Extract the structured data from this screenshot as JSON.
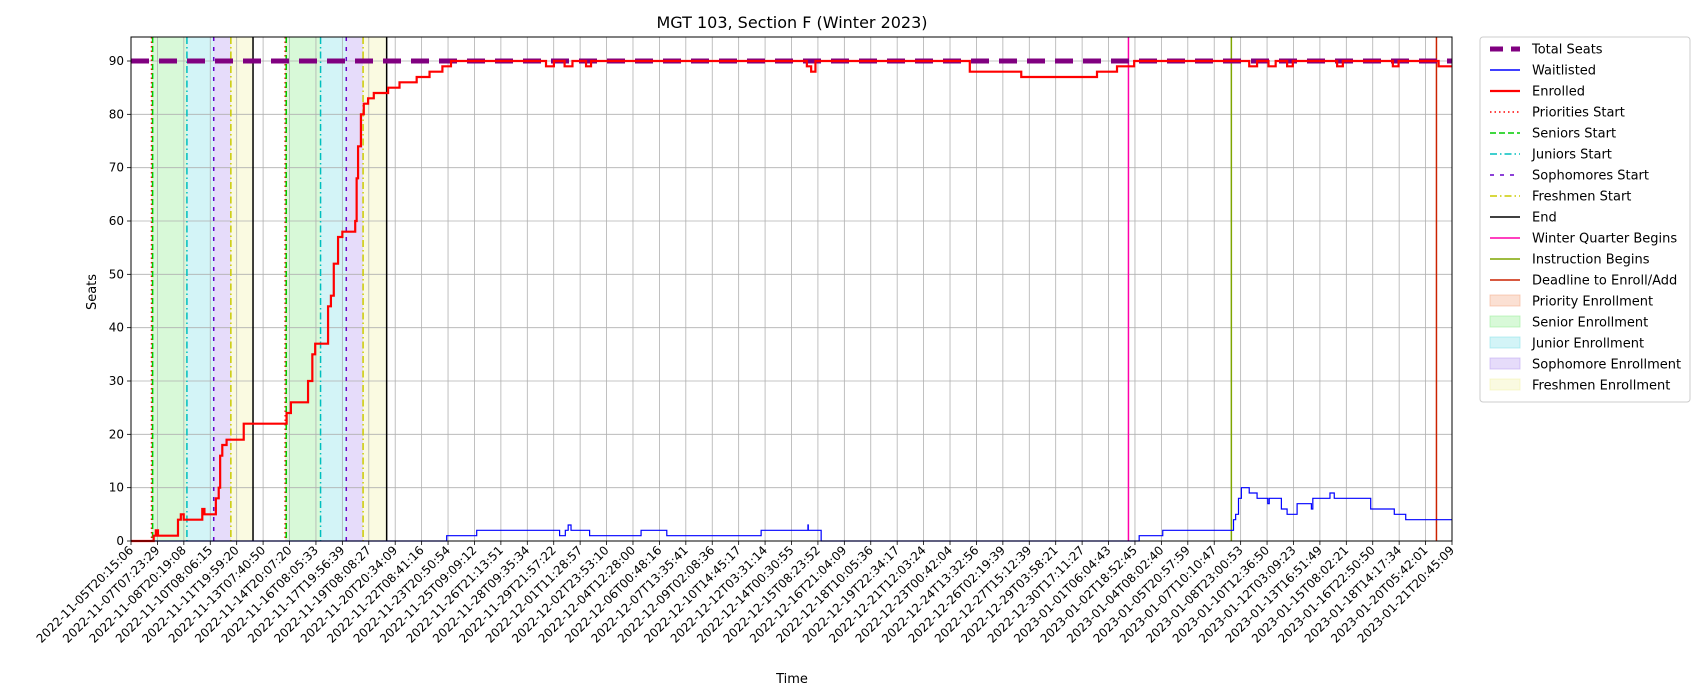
{
  "chart_data": {
    "type": "line",
    "title": "MGT 103, Section F (Winter 2023)",
    "xlabel": "Time",
    "ylabel": "Seats",
    "ylim": [
      0,
      94.5
    ],
    "yticks": [
      0,
      10,
      20,
      30,
      40,
      50,
      60,
      70,
      80,
      90
    ],
    "grid": true,
    "legend_position": "outside-right",
    "x_range": [
      "2022-11-05T20:15:06",
      "2023-01-21T20:45:09"
    ],
    "x_tick_labels": [
      "2022-11-05T20:15:06",
      "2022-11-07T07:23:29",
      "2022-11-08T20:19:08",
      "2022-11-10T08:06:15",
      "2022-11-11T19:59:20",
      "2022-11-13T07:40:50",
      "2022-11-14T20:07:20",
      "2022-11-16T08:05:33",
      "2022-11-17T19:56:39",
      "2022-11-19T08:08:27",
      "2022-11-20T20:34:09",
      "2022-11-22T08:41:16",
      "2022-11-23T20:50:54",
      "2022-11-25T09:09:12",
      "2022-11-26T21:13:51",
      "2022-11-28T09:35:34",
      "2022-11-29T21:57:22",
      "2022-12-01T11:28:57",
      "2022-12-02T23:53:10",
      "2022-12-04T12:28:00",
      "2022-12-06T00:48:16",
      "2022-12-07T13:35:41",
      "2022-12-09T02:08:36",
      "2022-12-10T14:45:17",
      "2022-12-12T03:31:14",
      "2022-12-14T00:30:55",
      "2022-12-15T08:23:52",
      "2022-12-16T21:04:09",
      "2022-12-18T10:05:36",
      "2022-12-19T22:34:17",
      "2022-12-21T12:03:24",
      "2022-12-23T00:42:04",
      "2022-12-24T13:32:56",
      "2022-12-26T02:19:39",
      "2022-12-27T15:12:39",
      "2022-12-29T03:58:21",
      "2022-12-30T17:11:27",
      "2023-01-01T06:04:43",
      "2023-01-02T18:52:45",
      "2023-01-04T08:02:40",
      "2023-01-05T20:57:59",
      "2023-01-07T10:10:47",
      "2023-01-08T23:00:53",
      "2023-01-10T12:36:50",
      "2023-01-12T03:09:23",
      "2023-01-13T16:51:49",
      "2023-01-15T08:02:21",
      "2023-01-16T22:50:50",
      "2023-01-18T14:17:34",
      "2023-01-20T05:42:01",
      "2023-01-21T20:45:09"
    ],
    "series": [
      {
        "name": "Total Seats",
        "color": "#800080",
        "style": "dashed-thick",
        "points": [
          [
            "2022-11-05T20:15:06",
            90
          ],
          [
            "2023-01-21T20:45:09",
            90
          ]
        ]
      },
      {
        "name": "Waitlisted",
        "color": "#0000ff",
        "style": "step",
        "points": [
          [
            "2022-11-05T20:15:06",
            0
          ],
          [
            "2022-11-23T20:50:54",
            0
          ],
          [
            "2022-11-24T06:00:00",
            1
          ],
          [
            "2022-11-25T09:09:12",
            1
          ],
          [
            "2022-11-26T00:00:00",
            2
          ],
          [
            "2022-11-30T12:00:00",
            2
          ],
          [
            "2022-11-30T20:00:00",
            1
          ],
          [
            "2022-12-01T04:00:00",
            2
          ],
          [
            "2022-12-01T08:00:00",
            3
          ],
          [
            "2022-12-01T12:00:00",
            2
          ],
          [
            "2022-12-02T12:00:00",
            2
          ],
          [
            "2022-12-02T14:00:00",
            1
          ],
          [
            "2022-12-05T12:00:00",
            1
          ],
          [
            "2022-12-05T14:00:00",
            2
          ],
          [
            "2022-12-07T00:00:00",
            2
          ],
          [
            "2022-12-07T02:00:00",
            1
          ],
          [
            "2022-12-12T12:00:00",
            1
          ],
          [
            "2022-12-12T14:00:00",
            2
          ],
          [
            "2022-12-15T07:00:00",
            2
          ],
          [
            "2022-12-15T07:30:00",
            3
          ],
          [
            "2022-12-15T08:00:00",
            2
          ],
          [
            "2022-12-16T01:00:00",
            2
          ],
          [
            "2022-12-16T02:00:00",
            0
          ],
          [
            "2023-01-03T13:00:00",
            0
          ],
          [
            "2023-01-03T15:00:00",
            1
          ],
          [
            "2023-01-04T18:00:00",
            1
          ],
          [
            "2023-01-05T00:00:00",
            2
          ],
          [
            "2023-01-09T00:00:00",
            2
          ],
          [
            "2023-01-09T03:00:00",
            4
          ],
          [
            "2023-01-09T06:00:00",
            5
          ],
          [
            "2023-01-09T10:00:00",
            8
          ],
          [
            "2023-01-09T14:00:00",
            10
          ],
          [
            "2023-01-10T01:00:00",
            9
          ],
          [
            "2023-01-10T12:00:00",
            8
          ],
          [
            "2023-01-11T00:00:00",
            8
          ],
          [
            "2023-01-11T03:00:00",
            7
          ],
          [
            "2023-01-11T05:00:00",
            8
          ],
          [
            "2023-01-11T20:00:00",
            8
          ],
          [
            "2023-01-11T22:00:00",
            6
          ],
          [
            "2023-01-12T06:00:00",
            5
          ],
          [
            "2023-01-12T20:00:00",
            7
          ],
          [
            "2023-01-13T15:00:00",
            7
          ],
          [
            "2023-01-13T16:00:00",
            6
          ],
          [
            "2023-01-13T18:00:00",
            8
          ],
          [
            "2023-01-14T15:00:00",
            8
          ],
          [
            "2023-01-14T18:00:00",
            9
          ],
          [
            "2023-01-15T00:00:00",
            8
          ],
          [
            "2023-01-17T00:00:00",
            8
          ],
          [
            "2023-01-17T03:00:00",
            6
          ],
          [
            "2023-01-18T10:00:00",
            6
          ],
          [
            "2023-01-18T12:00:00",
            5
          ],
          [
            "2023-01-19T03:00:00",
            5
          ],
          [
            "2023-01-19T04:00:00",
            4
          ],
          [
            "2023-01-21T20:45:09",
            4
          ]
        ]
      },
      {
        "name": "Enrolled",
        "color": "#ff0000",
        "style": "step-thick",
        "points": [
          [
            "2022-11-05T20:15:06",
            0
          ],
          [
            "2022-11-06T23:00:00",
            0
          ],
          [
            "2022-11-07T04:00:00",
            1
          ],
          [
            "2022-11-07T07:00:00",
            2
          ],
          [
            "2022-11-07T10:00:00",
            1
          ],
          [
            "2022-11-08T08:00:00",
            1
          ],
          [
            "2022-11-08T14:00:00",
            4
          ],
          [
            "2022-11-08T18:00:00",
            5
          ],
          [
            "2022-11-08T22:00:00",
            4
          ],
          [
            "2022-11-09T23:00:00",
            4
          ],
          [
            "2022-11-10T00:00:00",
            6
          ],
          [
            "2022-11-10T03:00:00",
            5
          ],
          [
            "2022-11-10T14:00:00",
            5
          ],
          [
            "2022-11-10T19:00:00",
            8
          ],
          [
            "2022-11-10T23:00:00",
            10
          ],
          [
            "2022-11-11T01:00:00",
            16
          ],
          [
            "2022-11-11T04:00:00",
            18
          ],
          [
            "2022-11-11T10:00:00",
            19
          ],
          [
            "2022-11-12T08:00:00",
            19
          ],
          [
            "2022-11-12T10:00:00",
            22
          ],
          [
            "2022-11-14T17:00:00",
            22
          ],
          [
            "2022-11-14T22:00:00",
            24
          ],
          [
            "2022-11-15T04:00:00",
            26
          ],
          [
            "2022-11-15T20:00:00",
            26
          ],
          [
            "2022-11-16T04:00:00",
            30
          ],
          [
            "2022-11-16T10:00:00",
            35
          ],
          [
            "2022-11-16T14:00:00",
            37
          ],
          [
            "2022-11-17T04:00:00",
            37
          ],
          [
            "2022-11-17T08:00:00",
            44
          ],
          [
            "2022-11-17T12:00:00",
            46
          ],
          [
            "2022-11-17T16:00:00",
            52
          ],
          [
            "2022-11-17T22:00:00",
            57
          ],
          [
            "2022-11-18T04:00:00",
            58
          ],
          [
            "2022-11-18T20:00:00",
            58
          ],
          [
            "2022-11-18T22:00:00",
            60
          ],
          [
            "2022-11-19T00:00:00",
            68
          ],
          [
            "2022-11-19T02:00:00",
            74
          ],
          [
            "2022-11-19T06:00:00",
            80
          ],
          [
            "2022-11-19T10:00:00",
            82
          ],
          [
            "2022-11-19T16:00:00",
            83
          ],
          [
            "2022-11-20T00:00:00",
            84
          ],
          [
            "2022-11-20T20:00:00",
            85
          ],
          [
            "2022-11-21T12:00:00",
            86
          ],
          [
            "2022-11-22T12:00:00",
            87
          ],
          [
            "2022-11-23T06:00:00",
            88
          ],
          [
            "2022-11-24T00:00:00",
            89
          ],
          [
            "2022-11-24T12:00:00",
            90
          ],
          [
            "2022-11-30T00:00:00",
            90
          ],
          [
            "2022-11-30T01:00:00",
            89
          ],
          [
            "2022-11-30T12:00:00",
            90
          ],
          [
            "2022-12-01T02:00:00",
            90
          ],
          [
            "2022-12-01T03:00:00",
            89
          ],
          [
            "2022-12-01T14:00:00",
            90
          ],
          [
            "2022-12-02T08:00:00",
            90
          ],
          [
            "2022-12-02T09:00:00",
            89
          ],
          [
            "2022-12-02T16:00:00",
            90
          ],
          [
            "2022-12-15T04:00:00",
            90
          ],
          [
            "2022-12-15T06:00:00",
            89
          ],
          [
            "2022-12-15T12:00:00",
            88
          ],
          [
            "2022-12-15T18:00:00",
            90
          ],
          [
            "2022-12-24T14:00:00",
            90
          ],
          [
            "2022-12-24T18:00:00",
            88
          ],
          [
            "2022-12-27T15:00:00",
            88
          ],
          [
            "2022-12-27T18:00:00",
            87
          ],
          [
            "2023-01-01T00:00:00",
            87
          ],
          [
            "2023-01-01T04:00:00",
            88
          ],
          [
            "2023-01-02T06:00:00",
            88
          ],
          [
            "2023-01-02T08:00:00",
            89
          ],
          [
            "2023-01-03T06:00:00",
            89
          ],
          [
            "2023-01-03T08:00:00",
            90
          ],
          [
            "2023-01-10T00:00:00",
            90
          ],
          [
            "2023-01-10T01:00:00",
            89
          ],
          [
            "2023-01-10T12:00:00",
            90
          ],
          [
            "2023-01-11T02:00:00",
            90
          ],
          [
            "2023-01-11T04:00:00",
            89
          ],
          [
            "2023-01-11T14:00:00",
            90
          ],
          [
            "2023-01-12T04:00:00",
            90
          ],
          [
            "2023-01-12T06:00:00",
            89
          ],
          [
            "2023-01-12T14:00:00",
            90
          ],
          [
            "2023-01-15T02:00:00",
            90
          ],
          [
            "2023-01-15T04:00:00",
            89
          ],
          [
            "2023-01-15T12:00:00",
            90
          ],
          [
            "2023-01-18T08:00:00",
            90
          ],
          [
            "2023-01-18T10:00:00",
            89
          ],
          [
            "2023-01-18T18:00:00",
            90
          ],
          [
            "2023-01-21T00:00:00",
            90
          ],
          [
            "2023-01-21T02:00:00",
            89
          ],
          [
            "2023-01-21T20:45:09",
            89
          ]
        ]
      }
    ],
    "vertical_lines": [
      {
        "name": "Priorities Start",
        "color": "#ff0000",
        "dash": "dotted",
        "x": [
          "2022-11-07T01:00:00",
          "2022-11-14T20:00:00"
        ]
      },
      {
        "name": "Seniors Start",
        "color": "#00cc00",
        "dash": "dashed",
        "x": [
          "2022-11-07T02:30:00",
          "2022-11-14T21:30:00"
        ]
      },
      {
        "name": "Juniors Start",
        "color": "#00bfbf",
        "dash": "dashdot",
        "x": [
          "2022-11-09T02:30:00",
          "2022-11-16T21:30:00"
        ]
      },
      {
        "name": "Sophomores Start",
        "color": "#6600cc",
        "dash": "densedash",
        "x": [
          "2022-11-10T16:00:00",
          "2022-11-18T09:30:00"
        ]
      },
      {
        "name": "Freshmen Start",
        "color": "#cccc00",
        "dash": "dashdot",
        "x": [
          "2022-11-11T16:00:00",
          "2022-11-19T09:00:00"
        ]
      },
      {
        "name": "End",
        "color": "#000000",
        "dash": "solid",
        "x": [
          "2022-11-12T23:00:00",
          "2022-11-20T18:00:00"
        ]
      },
      {
        "name": "Winter Quarter Begins",
        "color": "#ff00aa",
        "dash": "solid",
        "x": [
          "2023-01-03T00:00:00"
        ]
      },
      {
        "name": "Instruction Begins",
        "color": "#7fa600",
        "dash": "solid",
        "x": [
          "2023-01-09T00:00:00"
        ]
      },
      {
        "name": "Deadline to Enroll/Add",
        "color": "#cc2200",
        "dash": "solid",
        "x": [
          "2023-01-20T23:00:00"
        ]
      }
    ],
    "shaded_periods": [
      {
        "name": "Priority Enrollment",
        "color": "#f4a582",
        "ranges": [
          [
            "2022-11-07T01:00:00",
            "2022-11-07T02:30:00"
          ],
          [
            "2022-11-14T20:00:00",
            "2022-11-14T21:30:00"
          ]
        ]
      },
      {
        "name": "Senior Enrollment",
        "color": "#90ee90",
        "ranges": [
          [
            "2022-11-07T02:30:00",
            "2022-11-09T02:30:00"
          ],
          [
            "2022-11-14T21:30:00",
            "2022-11-16T21:30:00"
          ]
        ]
      },
      {
        "name": "Junior Enrollment",
        "color": "#80e0e8",
        "ranges": [
          [
            "2022-11-09T02:30:00",
            "2022-11-10T16:00:00"
          ],
          [
            "2022-11-16T21:30:00",
            "2022-11-18T09:30:00"
          ]
        ]
      },
      {
        "name": "Sophomore Enrollment",
        "color": "#b79cf0",
        "ranges": [
          [
            "2022-11-10T16:00:00",
            "2022-11-11T16:00:00"
          ],
          [
            "2022-11-18T09:30:00",
            "2022-11-19T09:00:00"
          ]
        ]
      },
      {
        "name": "Freshmen Enrollment",
        "color": "#f2f2a8",
        "ranges": [
          [
            "2022-11-11T16:00:00",
            "2022-11-12T23:00:00"
          ],
          [
            "2022-11-19T09:00:00",
            "2022-11-20T18:00:00"
          ]
        ]
      }
    ],
    "legend": [
      {
        "label": "Total Seats",
        "kind": "line",
        "color": "#800080",
        "dash": "thickdash"
      },
      {
        "label": "Waitlisted",
        "kind": "line",
        "color": "#0000ff",
        "dash": "solid"
      },
      {
        "label": "Enrolled",
        "kind": "line",
        "color": "#ff0000",
        "dash": "solidthick"
      },
      {
        "label": "Priorities Start",
        "kind": "line",
        "color": "#ff0000",
        "dash": "dotted"
      },
      {
        "label": "Seniors Start",
        "kind": "line",
        "color": "#00cc00",
        "dash": "dashed"
      },
      {
        "label": "Juniors Start",
        "kind": "line",
        "color": "#00bfbf",
        "dash": "dashdot"
      },
      {
        "label": "Sophomores Start",
        "kind": "line",
        "color": "#6600cc",
        "dash": "densedash"
      },
      {
        "label": "Freshmen Start",
        "kind": "line",
        "color": "#cccc00",
        "dash": "dashdot"
      },
      {
        "label": "End",
        "kind": "line",
        "color": "#000000",
        "dash": "solid"
      },
      {
        "label": "Winter Quarter Begins",
        "kind": "line",
        "color": "#ff00aa",
        "dash": "solid"
      },
      {
        "label": "Instruction Begins",
        "kind": "line",
        "color": "#7fa600",
        "dash": "solid"
      },
      {
        "label": "Deadline to Enroll/Add",
        "kind": "line",
        "color": "#cc2200",
        "dash": "solid"
      },
      {
        "label": "Priority Enrollment",
        "kind": "patch",
        "color": "#f4a582"
      },
      {
        "label": "Senior Enrollment",
        "kind": "patch",
        "color": "#90ee90"
      },
      {
        "label": "Junior Enrollment",
        "kind": "patch",
        "color": "#80e0e8"
      },
      {
        "label": "Sophomore Enrollment",
        "kind": "patch",
        "color": "#b79cf0"
      },
      {
        "label": "Freshmen Enrollment",
        "kind": "patch",
        "color": "#f2f2a8"
      }
    ]
  }
}
